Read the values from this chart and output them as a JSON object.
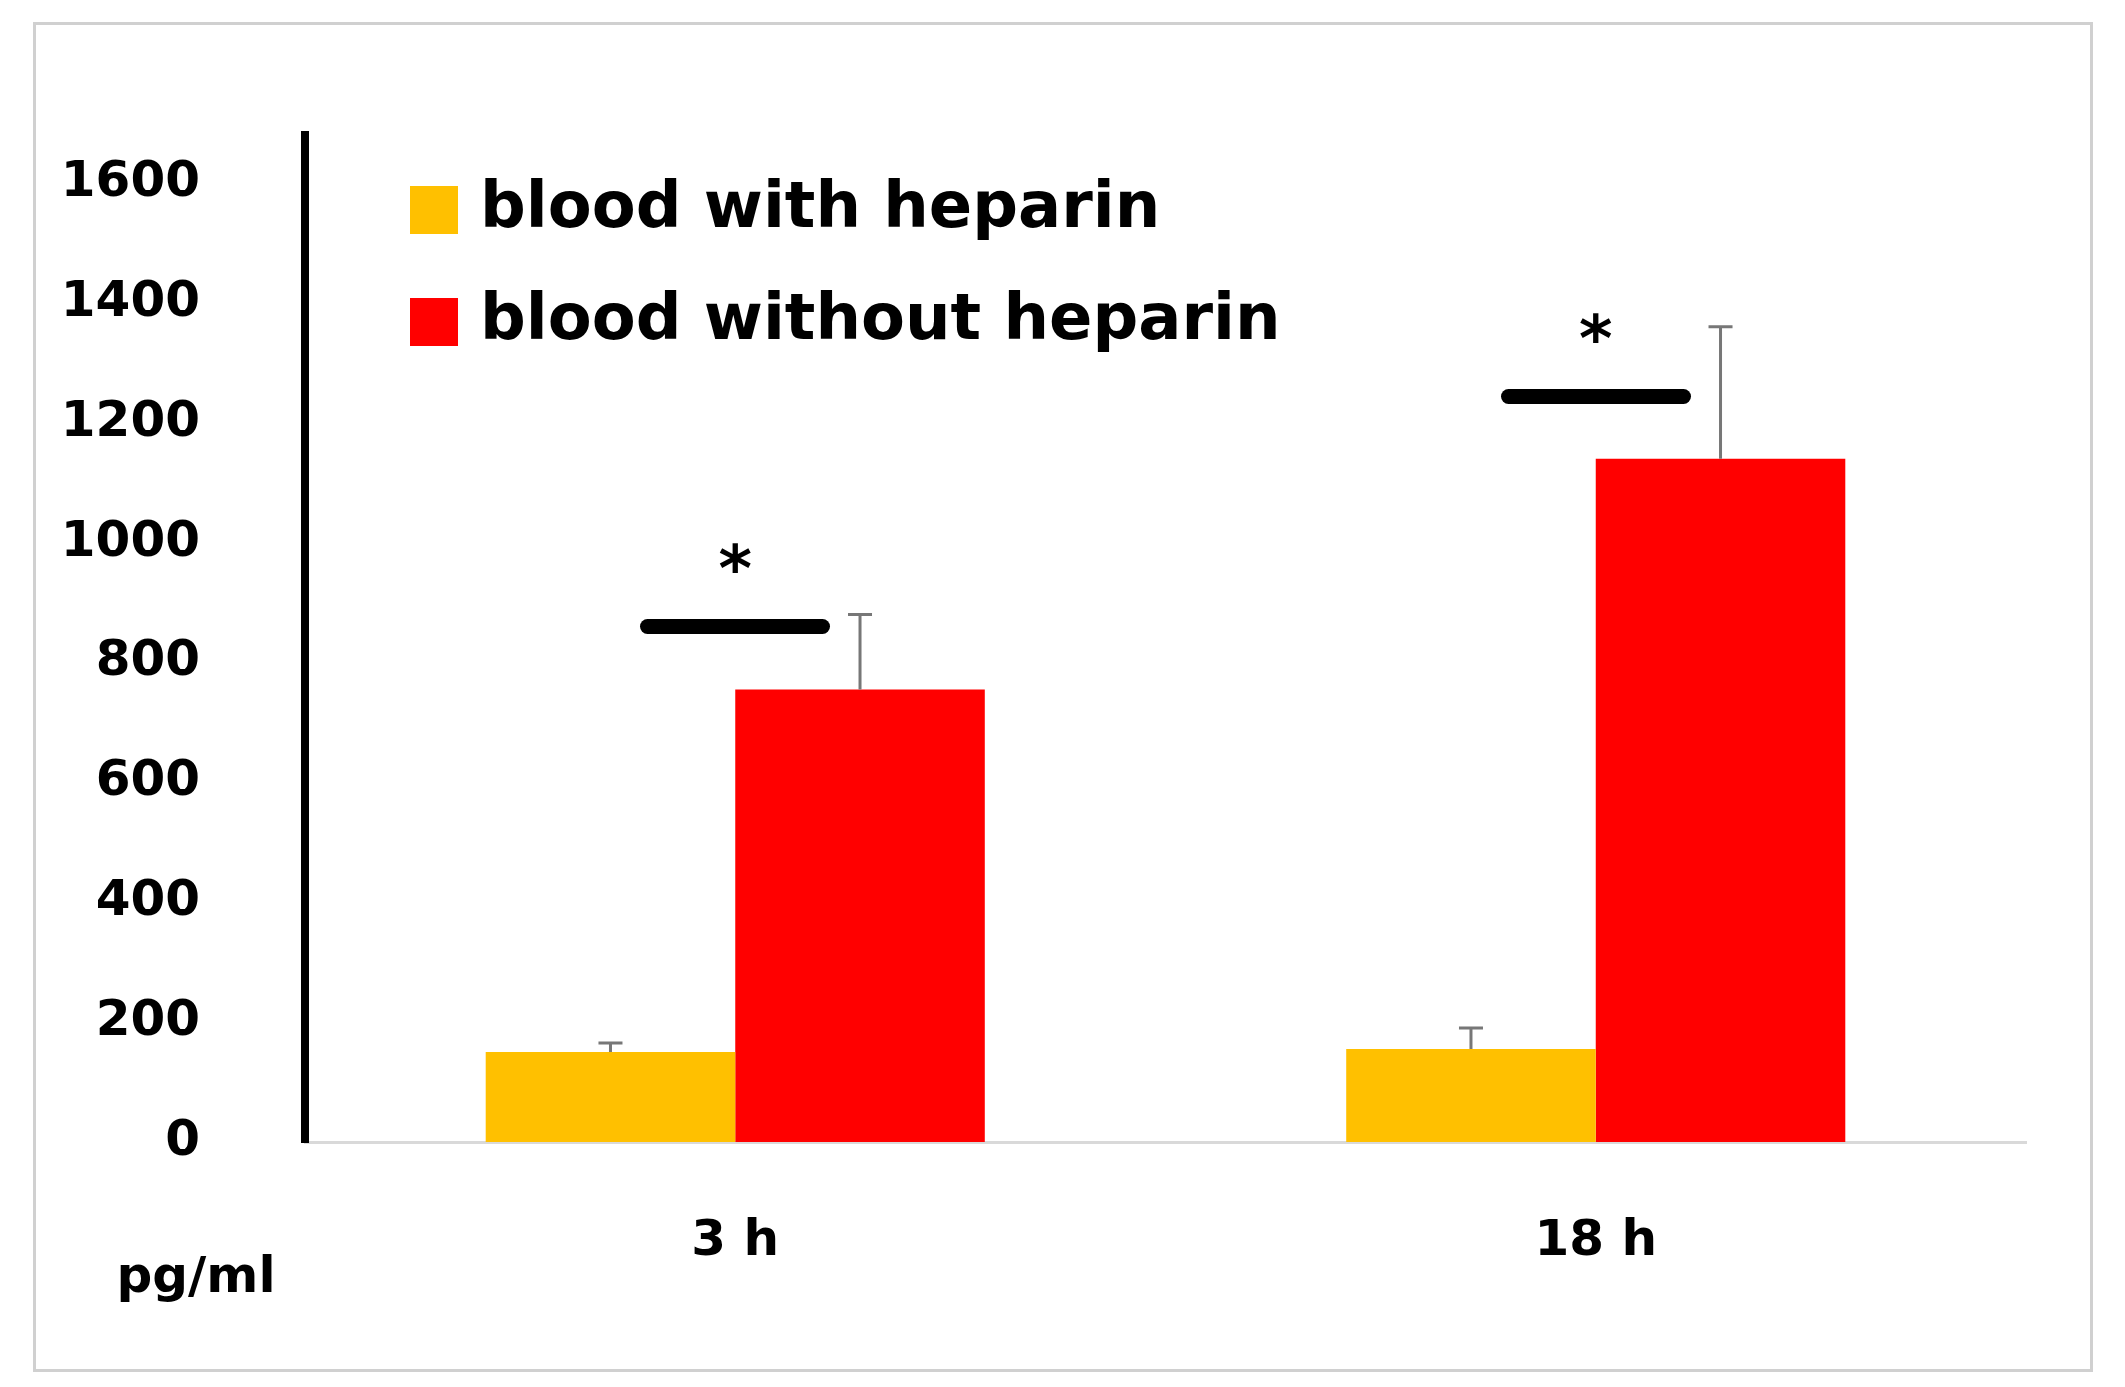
{
  "chart_data": {
    "type": "bar",
    "ylabel": "pg/ml",
    "categories": [
      "3 h",
      "18 h"
    ],
    "series": [
      {
        "name": "blood with heparin",
        "color": "#ffc000",
        "values": [
          150,
          155
        ],
        "errors": [
          [
            150,
            165
          ],
          [
            155,
            190
          ]
        ]
      },
      {
        "name": "blood without heparin",
        "color": "#ff0000",
        "values": [
          755,
          1140
        ],
        "errors": [
          [
            755,
            880
          ],
          [
            1140,
            1360
          ]
        ]
      }
    ],
    "ylim": [
      0,
      1680
    ],
    "yticks": [
      0,
      200,
      400,
      600,
      800,
      1000,
      1200,
      1400,
      1600
    ],
    "grid": false,
    "legend": "top left",
    "annotations": [
      "*",
      "*"
    ]
  }
}
